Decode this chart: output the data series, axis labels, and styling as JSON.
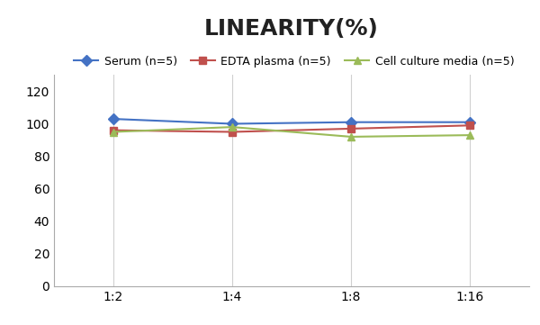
{
  "title": "LINEARITY(%)",
  "x_labels": [
    "1:2",
    "1:4",
    "1:8",
    "1:16"
  ],
  "x_positions": [
    0,
    1,
    2,
    3
  ],
  "series": [
    {
      "label": "Serum (n=5)",
      "values": [
        103,
        100,
        101,
        101
      ],
      "color": "#4472C4",
      "marker": "D",
      "marker_color": "#4472C4",
      "linewidth": 1.5
    },
    {
      "label": "EDTA plasma (n=5)",
      "values": [
        96,
        95,
        97,
        99
      ],
      "color": "#C0504D",
      "marker": "s",
      "marker_color": "#C0504D",
      "linewidth": 1.5
    },
    {
      "label": "Cell culture media (n=5)",
      "values": [
        95,
        98,
        92,
        93
      ],
      "color": "#9BBB59",
      "marker": "^",
      "marker_color": "#9BBB59",
      "linewidth": 1.5
    }
  ],
  "ylim": [
    0,
    130
  ],
  "yticks": [
    0,
    20,
    40,
    60,
    80,
    100,
    120
  ],
  "background_color": "#FFFFFF",
  "plot_bg_color": "#FFFFFF",
  "grid_color": "#D0D0D0",
  "title_fontsize": 18,
  "legend_fontsize": 9,
  "tick_fontsize": 10
}
